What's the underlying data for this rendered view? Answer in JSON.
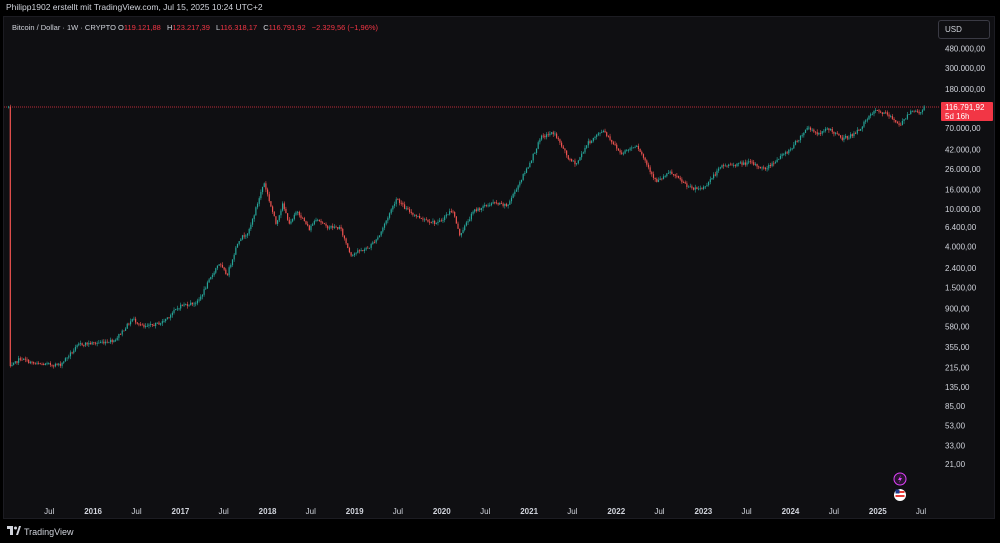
{
  "header": {
    "attribution": "Philipp1902 erstellt mit TradingView.com, Jul 15, 2025 10:24 UTC+2"
  },
  "legend": {
    "title": "Bitcoin / Dollar · 1W · CRYPTO",
    "o_key": "O",
    "o_val": "119.121,88",
    "h_key": "H",
    "h_val": "123.217,39",
    "l_key": "L",
    "l_val": "116.318,17",
    "c_key": "C",
    "c_val": "116.791,92",
    "change": "−2.329,56 (−1,96%)"
  },
  "currency_button": "USD",
  "price_label": {
    "value": "116.791,92",
    "countdown": "5d 16h"
  },
  "colors": {
    "up": "#26a69a",
    "down": "#ef5350",
    "price_line": "#f23645",
    "background": "#0f0f12"
  },
  "footer": {
    "brand": "TradingView"
  },
  "icons": [
    "lightning-icon",
    "us-flag-icon",
    "tradingview-logo-icon"
  ],
  "chart_data": {
    "type": "candlestick",
    "title": "Bitcoin / Dollar · 1W · CRYPTO",
    "log_scale": true,
    "grid": false,
    "y_ticks": [
      {
        "value": 480000,
        "label": "480.000,00"
      },
      {
        "value": 300000,
        "label": "300.000,00"
      },
      {
        "value": 180000,
        "label": "180.000,00"
      },
      {
        "value": 70000,
        "label": "70.000,00"
      },
      {
        "value": 42000,
        "label": "42.000,00"
      },
      {
        "value": 26000,
        "label": "26.000,00"
      },
      {
        "value": 16000,
        "label": "16.000,00"
      },
      {
        "value": 10000,
        "label": "10.000,00"
      },
      {
        "value": 6400,
        "label": "6.400,00"
      },
      {
        "value": 4000,
        "label": "4.000,00"
      },
      {
        "value": 2400,
        "label": "2.400,00"
      },
      {
        "value": 1500,
        "label": "1.500,00"
      },
      {
        "value": 900,
        "label": "900,00"
      },
      {
        "value": 580,
        "label": "580,00"
      },
      {
        "value": 355,
        "label": "355,00"
      },
      {
        "value": 215,
        "label": "215,00"
      },
      {
        "value": 135,
        "label": "135,00"
      },
      {
        "value": 85,
        "label": "85,00"
      },
      {
        "value": 53,
        "label": "53,00"
      },
      {
        "value": 33,
        "label": "33,00"
      },
      {
        "value": 21,
        "label": "21,00"
      }
    ],
    "x_ticks": [
      {
        "date": "2015-07-01",
        "label": "Jul"
      },
      {
        "date": "2016-01-01",
        "label": "2016"
      },
      {
        "date": "2016-07-01",
        "label": "Jul"
      },
      {
        "date": "2017-01-01",
        "label": "2017"
      },
      {
        "date": "2017-07-01",
        "label": "Jul"
      },
      {
        "date": "2018-01-01",
        "label": "2018"
      },
      {
        "date": "2018-07-01",
        "label": "Jul"
      },
      {
        "date": "2019-01-01",
        "label": "2019"
      },
      {
        "date": "2019-07-01",
        "label": "Jul"
      },
      {
        "date": "2020-01-01",
        "label": "2020"
      },
      {
        "date": "2020-07-01",
        "label": "Jul"
      },
      {
        "date": "2021-01-01",
        "label": "2021"
      },
      {
        "date": "2021-07-01",
        "label": "Jul"
      },
      {
        "date": "2022-01-01",
        "label": "2022"
      },
      {
        "date": "2022-07-01",
        "label": "Jul"
      },
      {
        "date": "2023-01-01",
        "label": "2023"
      },
      {
        "date": "2023-07-01",
        "label": "Jul"
      },
      {
        "date": "2024-01-01",
        "label": "2024"
      },
      {
        "date": "2024-07-01",
        "label": "Jul"
      },
      {
        "date": "2025-01-01",
        "label": "2025"
      },
      {
        "date": "2025-07-01",
        "label": "Jul"
      }
    ],
    "series": [
      {
        "interval": "1W",
        "last_close": 116791.92,
        "approx_path": [
          {
            "date": "2015-01-15",
            "price": 210
          },
          {
            "date": "2015-03-01",
            "price": 270
          },
          {
            "date": "2015-05-01",
            "price": 235
          },
          {
            "date": "2015-08-15",
            "price": 230
          },
          {
            "date": "2015-11-05",
            "price": 380
          },
          {
            "date": "2016-01-15",
            "price": 390
          },
          {
            "date": "2016-04-01",
            "price": 420
          },
          {
            "date": "2016-06-15",
            "price": 700
          },
          {
            "date": "2016-08-01",
            "price": 570
          },
          {
            "date": "2016-10-15",
            "price": 640
          },
          {
            "date": "2016-12-31",
            "price": 960
          },
          {
            "date": "2017-03-15",
            "price": 1050
          },
          {
            "date": "2017-06-10",
            "price": 2700
          },
          {
            "date": "2017-07-15",
            "price": 2000
          },
          {
            "date": "2017-09-01",
            "price": 4700
          },
          {
            "date": "2017-10-15",
            "price": 5800
          },
          {
            "date": "2017-12-17",
            "price": 19000
          },
          {
            "date": "2018-02-05",
            "price": 7000
          },
          {
            "date": "2018-03-05",
            "price": 11000
          },
          {
            "date": "2018-04-05",
            "price": 6800
          },
          {
            "date": "2018-05-05",
            "price": 9600
          },
          {
            "date": "2018-06-25",
            "price": 6100
          },
          {
            "date": "2018-07-25",
            "price": 8100
          },
          {
            "date": "2018-09-01",
            "price": 6500
          },
          {
            "date": "2018-11-01",
            "price": 6300
          },
          {
            "date": "2018-12-15",
            "price": 3300
          },
          {
            "date": "2019-03-01",
            "price": 3900
          },
          {
            "date": "2019-04-15",
            "price": 5300
          },
          {
            "date": "2019-06-26",
            "price": 13000
          },
          {
            "date": "2019-08-01",
            "price": 10000
          },
          {
            "date": "2019-09-25",
            "price": 8200
          },
          {
            "date": "2019-12-15",
            "price": 7000
          },
          {
            "date": "2020-02-15",
            "price": 9900
          },
          {
            "date": "2020-03-15",
            "price": 5300
          },
          {
            "date": "2020-05-15",
            "price": 9500
          },
          {
            "date": "2020-08-01",
            "price": 11500
          },
          {
            "date": "2020-10-01",
            "price": 10700
          },
          {
            "date": "2020-12-31",
            "price": 29000
          },
          {
            "date": "2021-02-20",
            "price": 56000
          },
          {
            "date": "2021-04-15",
            "price": 63000
          },
          {
            "date": "2021-06-20",
            "price": 32000
          },
          {
            "date": "2021-07-20",
            "price": 30000
          },
          {
            "date": "2021-09-01",
            "price": 48000
          },
          {
            "date": "2021-11-08",
            "price": 67000
          },
          {
            "date": "2022-01-20",
            "price": 38000
          },
          {
            "date": "2022-03-28",
            "price": 47000
          },
          {
            "date": "2022-06-18",
            "price": 19000
          },
          {
            "date": "2022-08-15",
            "price": 24000
          },
          {
            "date": "2022-11-15",
            "price": 16000
          },
          {
            "date": "2022-12-31",
            "price": 16500
          },
          {
            "date": "2023-03-20",
            "price": 28000
          },
          {
            "date": "2023-07-15",
            "price": 30500
          },
          {
            "date": "2023-09-15",
            "price": 26000
          },
          {
            "date": "2023-12-31",
            "price": 42000
          },
          {
            "date": "2024-03-14",
            "price": 72000
          },
          {
            "date": "2024-05-01",
            "price": 60000
          },
          {
            "date": "2024-06-07",
            "price": 70000
          },
          {
            "date": "2024-08-05",
            "price": 54000
          },
          {
            "date": "2024-10-01",
            "price": 62000
          },
          {
            "date": "2024-12-17",
            "price": 106000
          },
          {
            "date": "2025-02-01",
            "price": 100000
          },
          {
            "date": "2025-04-07",
            "price": 76000
          },
          {
            "date": "2025-05-22",
            "price": 111000
          },
          {
            "date": "2025-06-22",
            "price": 100000
          },
          {
            "date": "2025-07-15",
            "price": 116791.92
          }
        ]
      }
    ]
  }
}
